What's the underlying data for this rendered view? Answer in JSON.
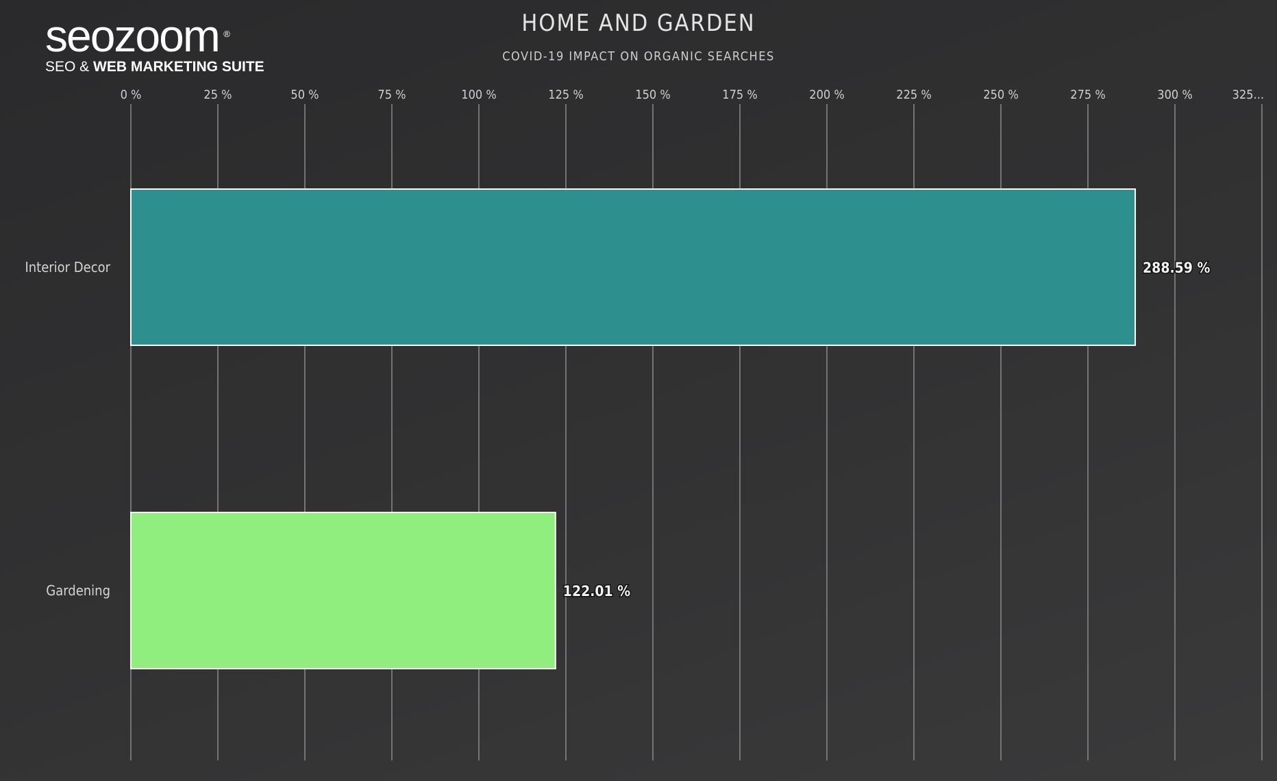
{
  "brand": {
    "logo_text": "seozoom",
    "registered_mark": "®",
    "tagline_prefix": "SEO & ",
    "tagline_bold": "WEB MARKETING SUITE"
  },
  "chart_data": {
    "type": "bar",
    "orientation": "horizontal",
    "title": "HOME AND GARDEN",
    "subtitle": "COVID-19 IMPACT ON ORGANIC SEARCHES",
    "categories": [
      "Interior Decor",
      "Gardening"
    ],
    "values": [
      288.59,
      122.01
    ],
    "value_labels": [
      "288.59 %",
      "122.01 %"
    ],
    "colors": [
      "#2e8f8f",
      "#90ee7e"
    ],
    "xlim": [
      0,
      325
    ],
    "x_ticks": [
      0,
      25,
      50,
      75,
      100,
      125,
      150,
      175,
      200,
      225,
      250,
      275,
      300,
      325
    ],
    "x_tick_labels": [
      "0 %",
      "25 %",
      "50 %",
      "75 %",
      "100 %",
      "125 %",
      "150 %",
      "175 %",
      "200 %",
      "225 %",
      "250 %",
      "275 %",
      "300 %",
      "325..."
    ],
    "xlabel": "",
    "ylabel": "",
    "grid": true,
    "gridline_color": "#8a8a8a",
    "background_color": "#2f2f30"
  }
}
